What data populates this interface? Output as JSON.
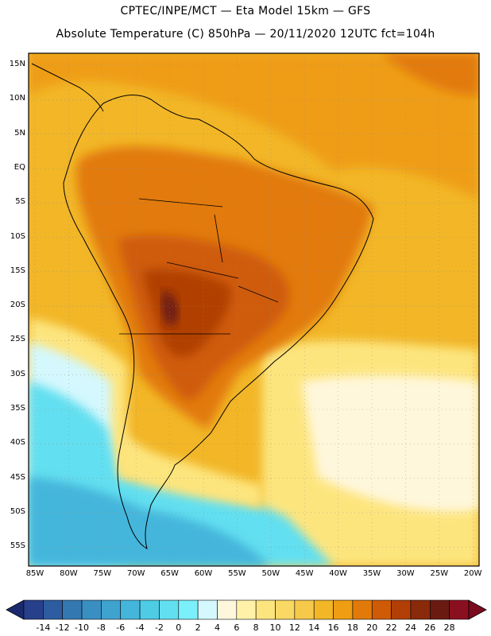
{
  "header": {
    "line1": "CPTEC/INPE/MCT —  Eta Model 15km — GFS",
    "line2": "Absolute Temperature (C) 850hPa — 20/11/2020 12UTC fct=104h"
  },
  "map": {
    "region": "South America",
    "lat_labels": [
      "15N",
      "10N",
      "5N",
      "EQ",
      "5S",
      "10S",
      "15S",
      "20S",
      "25S",
      "30S",
      "35S",
      "40S",
      "45S",
      "50S",
      "55S"
    ],
    "lon_labels": [
      "85W",
      "80W",
      "75W",
      "70W",
      "65W",
      "60W",
      "55W",
      "50W",
      "45W",
      "40W",
      "35W",
      "30W",
      "25W",
      "20W"
    ]
  },
  "colorbar": {
    "labels": [
      "-14",
      "-12",
      "-10",
      "-8",
      "-6",
      "-4",
      "-2",
      "0",
      "2",
      "4",
      "6",
      "8",
      "10",
      "12",
      "14",
      "16",
      "18",
      "20",
      "22",
      "24",
      "26",
      "28"
    ],
    "colors": [
      "#27408b",
      "#2d5ca0",
      "#3478b2",
      "#3a8fc2",
      "#3fa3cf",
      "#45b6db",
      "#4ecce6",
      "#62dff0",
      "#7bf0fa",
      "#d4f8fd",
      "#fff7dc",
      "#fff2a8",
      "#fde57e",
      "#f9d864",
      "#f6c94a",
      "#f2b627",
      "#ef9d12",
      "#e27a0a",
      "#cf5b07",
      "#b13f06",
      "#8a2a0b",
      "#6b1a12",
      "#8a1020"
    ],
    "under_color": "#1b2a6e",
    "over_color": "#7a0a1e"
  }
}
